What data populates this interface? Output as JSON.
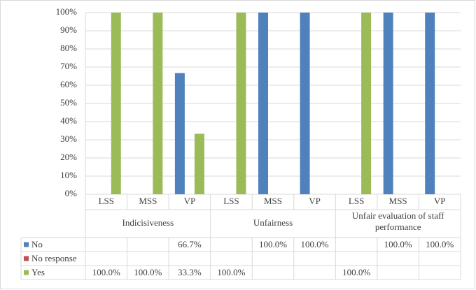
{
  "chart_data": {
    "type": "bar",
    "categories": [
      "LSS",
      "MSS",
      "VP",
      "LSS",
      "MSS",
      "VP",
      "LSS",
      "MSS",
      "VP"
    ],
    "groups": [
      "Indicisiveness",
      "Unfairness",
      "Unfair evaluation of staff performance"
    ],
    "series": [
      {
        "name": "No",
        "color": "#4f81bd",
        "values": [
          null,
          null,
          66.7,
          null,
          100,
          100,
          null,
          100,
          100
        ],
        "value_labels": [
          null,
          null,
          "66.7%",
          null,
          "100.0%",
          "100.0%",
          null,
          "100.0%",
          "100.0%"
        ]
      },
      {
        "name": "No response",
        "color": "#c0504d",
        "values": [
          null,
          null,
          null,
          null,
          null,
          null,
          null,
          null,
          null
        ],
        "value_labels": [
          null,
          null,
          null,
          null,
          null,
          null,
          null,
          null,
          null
        ]
      },
      {
        "name": "Yes",
        "color": "#9bbb59",
        "values": [
          100,
          100,
          33.3,
          100,
          null,
          null,
          100,
          null,
          null
        ],
        "value_labels": [
          "100.0%",
          "100.0%",
          "33.3%",
          "100.0%",
          null,
          null,
          "100.0%",
          null,
          null
        ]
      }
    ],
    "ylim": [
      0,
      100
    ],
    "yticks": [
      {
        "value": 0,
        "label": "0%"
      },
      {
        "value": 10,
        "label": "10%"
      },
      {
        "value": 20,
        "label": "20%"
      },
      {
        "value": 30,
        "label": "30%"
      },
      {
        "value": 40,
        "label": "40%"
      },
      {
        "value": 50,
        "label": "50%"
      },
      {
        "value": 60,
        "label": "60%"
      },
      {
        "value": 70,
        "label": "70%"
      },
      {
        "value": 80,
        "label": "80%"
      },
      {
        "value": 90,
        "label": "90%"
      },
      {
        "value": 100,
        "label": "100%"
      }
    ],
    "grid": true
  }
}
